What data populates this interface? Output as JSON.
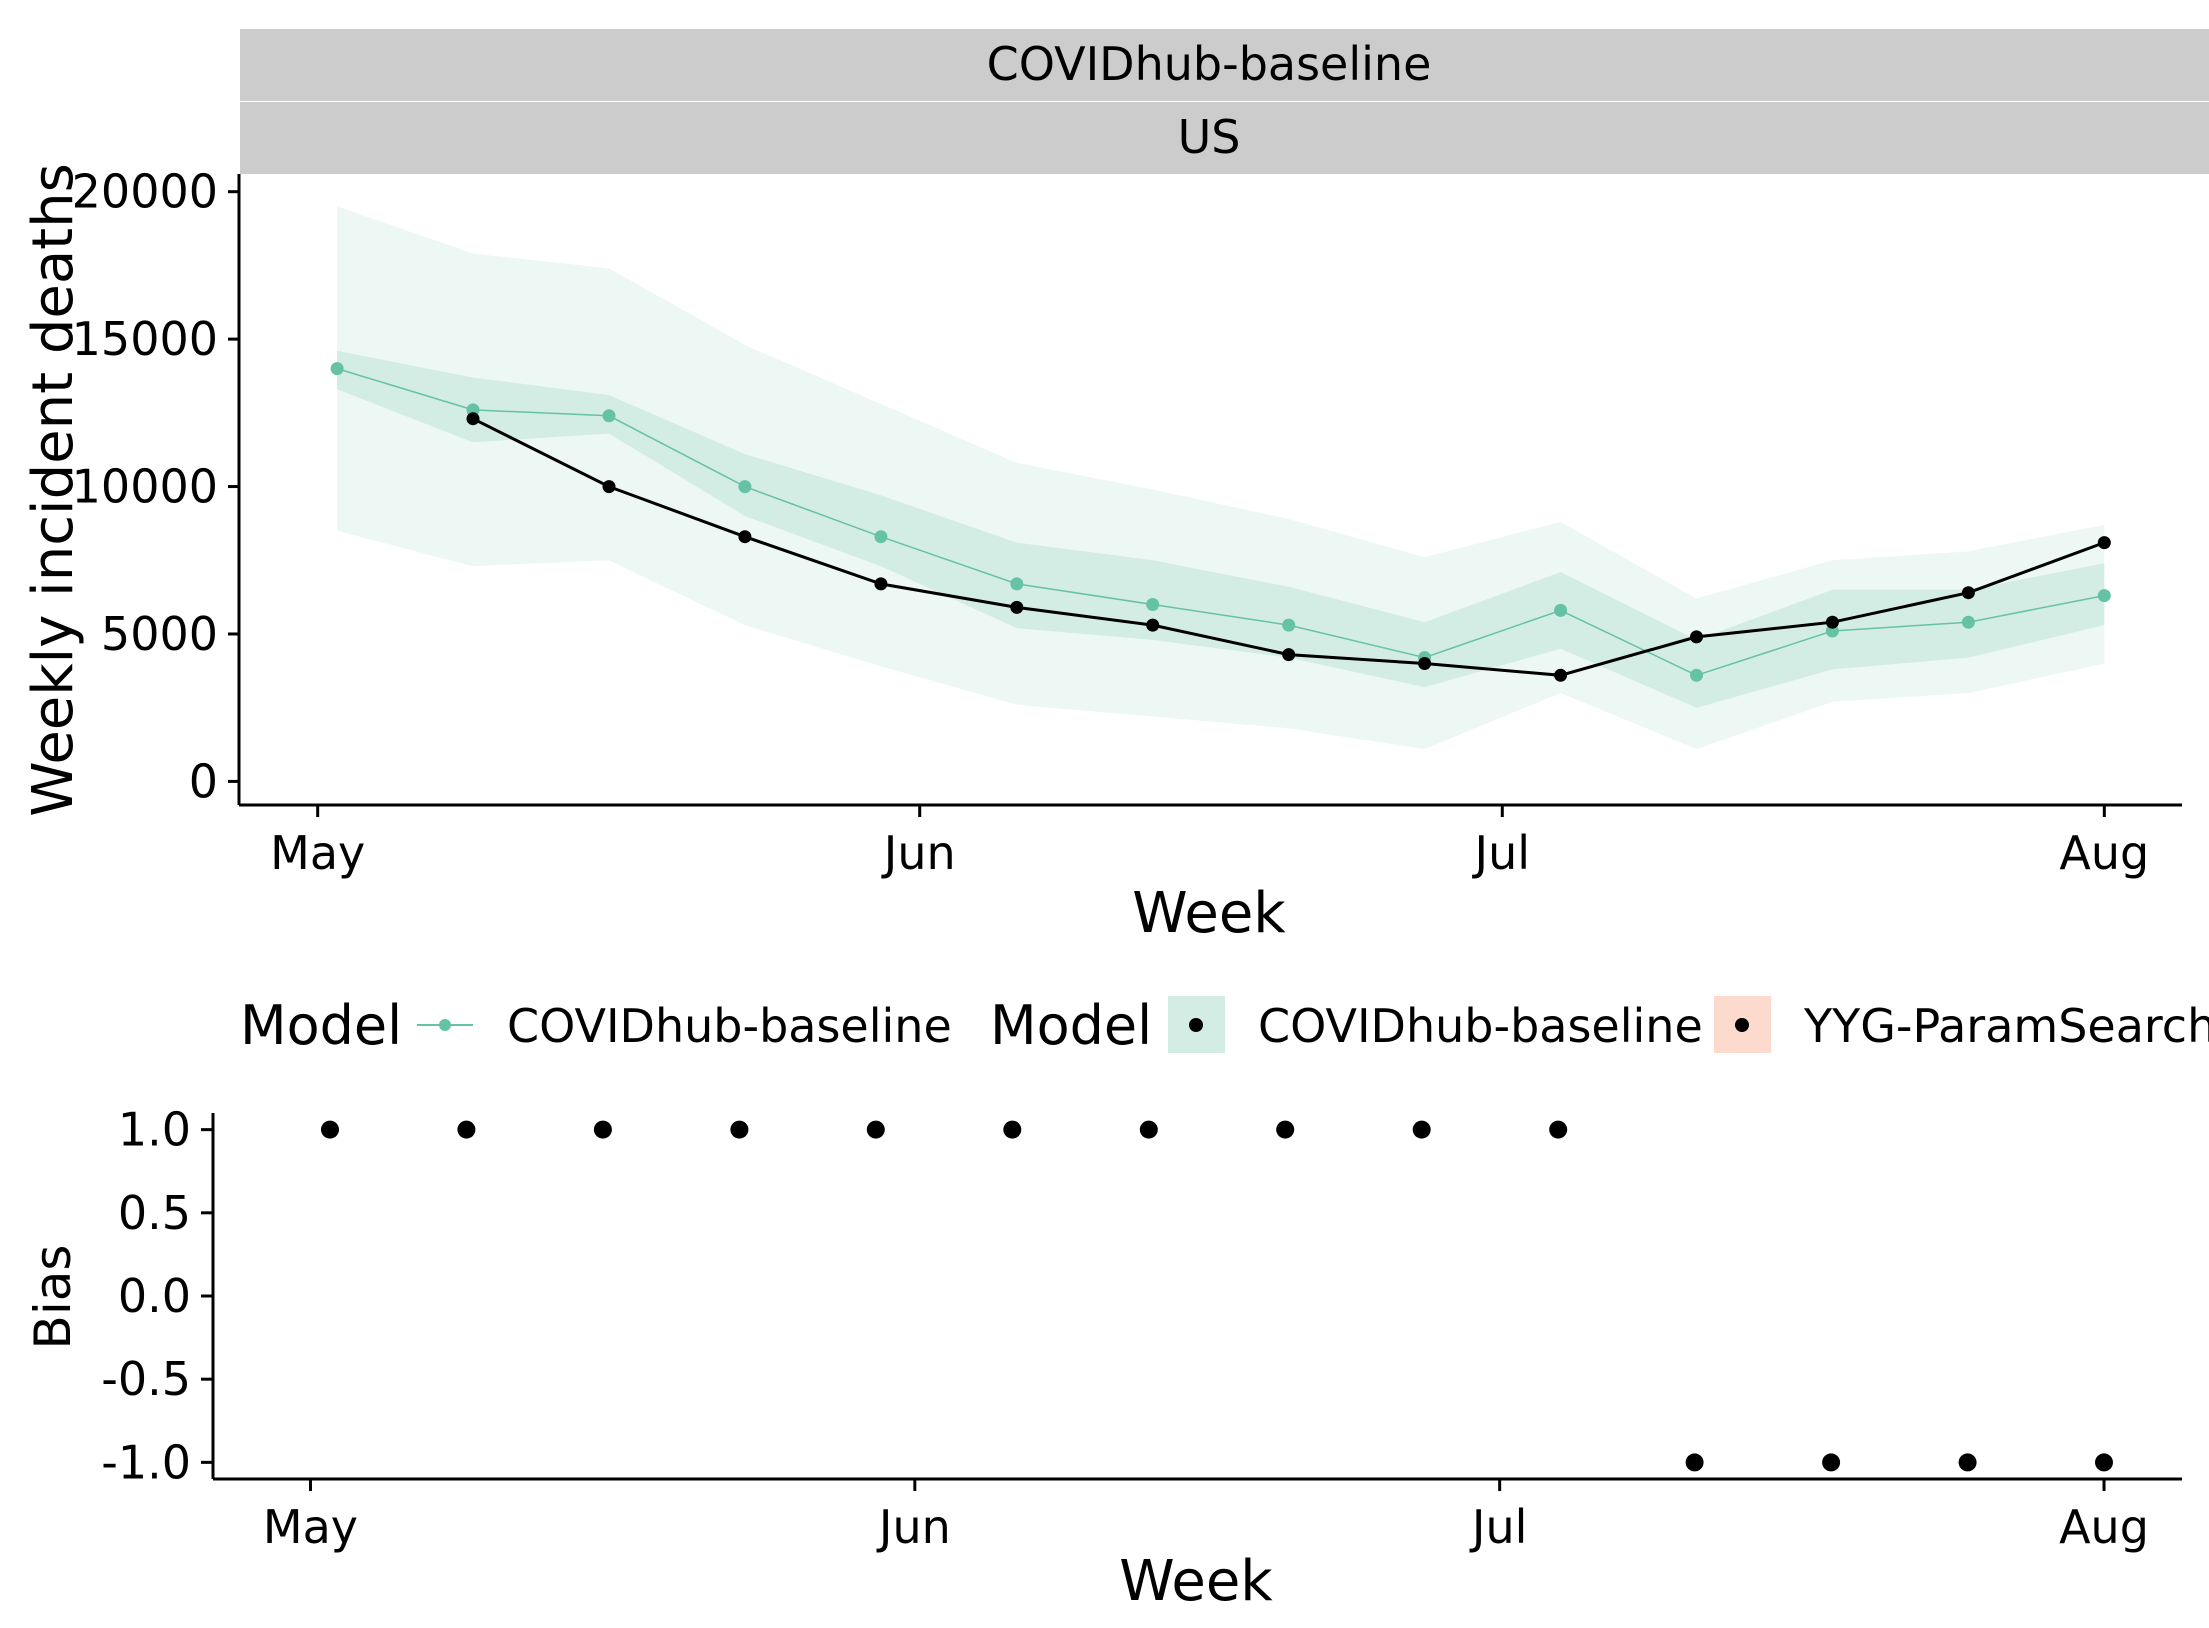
{
  "colors": {
    "forecast": "#66c2a5",
    "band_inner": "#d3ece4",
    "band_outer": "#edf7f3",
    "observed": "#000000",
    "strip": "#cccccc",
    "legend_key_ribbon": "#d3ece4",
    "legend_key_ribbon2": "#fcdacd"
  },
  "chart_data": [
    {
      "type": "line",
      "strip_labels": [
        "COVIDhub-baseline",
        "US"
      ],
      "xlabel": "Week",
      "ylabel": "Weekly incident deaths",
      "x_ticks": [
        {
          "label": "May",
          "date": "2020-05-01"
        },
        {
          "label": "Jun",
          "date": "2020-06-01"
        },
        {
          "label": "Jul",
          "date": "2020-07-01"
        },
        {
          "label": "Aug",
          "date": "2020-08-01"
        }
      ],
      "xlim": [
        "2020-04-27",
        "2020-08-05"
      ],
      "ylim": [
        -800,
        20600
      ],
      "y_ticks": [
        0,
        5000,
        10000,
        15000,
        20000
      ],
      "series": [
        {
          "name": "COVIDhub-baseline",
          "x": [
            "2020-05-02",
            "2020-05-09",
            "2020-05-16",
            "2020-05-23",
            "2020-05-30",
            "2020-06-06",
            "2020-06-13",
            "2020-06-20",
            "2020-06-27",
            "2020-07-04",
            "2020-07-11",
            "2020-07-18",
            "2020-07-25",
            "2020-08-01"
          ],
          "median": [
            14000,
            12600,
            12400,
            10000,
            8300,
            6700,
            6000,
            5300,
            4200,
            5800,
            3600,
            5100,
            5400,
            6300
          ],
          "inner_lower": [
            13300,
            11500,
            11800,
            9000,
            7300,
            5200,
            4800,
            4200,
            3200,
            4500,
            2500,
            3800,
            4200,
            5300
          ],
          "inner_upper": [
            14600,
            13700,
            13100,
            11100,
            9700,
            8100,
            7500,
            6600,
            5400,
            7100,
            4800,
            6500,
            6500,
            7400
          ],
          "outer_lower": [
            8500,
            7300,
            7500,
            5300,
            3900,
            2600,
            2200,
            1800,
            1100,
            3000,
            1100,
            2700,
            3000,
            4000
          ],
          "outer_upper": [
            19500,
            17900,
            17400,
            14800,
            12800,
            10800,
            9900,
            8900,
            7600,
            8800,
            6200,
            7500,
            7800,
            8700
          ]
        },
        {
          "name": "observed",
          "x": [
            "2020-05-09",
            "2020-05-16",
            "2020-05-23",
            "2020-05-30",
            "2020-06-06",
            "2020-06-13",
            "2020-06-20",
            "2020-06-27",
            "2020-07-04",
            "2020-07-11",
            "2020-07-18",
            "2020-07-25",
            "2020-08-01"
          ],
          "y": [
            12300,
            10000,
            8300,
            6700,
            5900,
            5300,
            4300,
            4000,
            3600,
            4900,
            5400,
            6400,
            8100
          ]
        }
      ]
    },
    {
      "type": "scatter",
      "xlabel": "Week",
      "ylabel": "Bias",
      "x_ticks": [
        {
          "label": "May",
          "date": "2020-05-01"
        },
        {
          "label": "Jun",
          "date": "2020-06-01"
        },
        {
          "label": "Jul",
          "date": "2020-07-01"
        },
        {
          "label": "Aug",
          "date": "2020-08-01"
        }
      ],
      "xlim": [
        "2020-04-26",
        "2020-08-05"
      ],
      "ylim": [
        -1.1,
        1.1
      ],
      "y_ticks": [
        "1.0",
        "0.5",
        "0.0",
        "-0.5",
        "-1.0"
      ],
      "y_tick_values": [
        1.0,
        0.5,
        0.0,
        -0.5,
        -1.0
      ],
      "points": {
        "x": [
          "2020-05-02",
          "2020-05-09",
          "2020-05-16",
          "2020-05-23",
          "2020-05-30",
          "2020-06-06",
          "2020-06-13",
          "2020-06-20",
          "2020-06-27",
          "2020-07-04",
          "2020-07-11",
          "2020-07-18",
          "2020-07-25",
          "2020-08-01"
        ],
        "y": [
          1,
          1,
          1,
          1,
          1,
          1,
          1,
          1,
          1,
          1,
          -1,
          -1,
          -1,
          -1
        ]
      }
    }
  ],
  "legend": {
    "title1": "Model",
    "item1": "COVIDhub-baseline",
    "title2": "Model",
    "item2": "COVIDhub-baseline",
    "item3": "YYG-ParamSearch"
  }
}
